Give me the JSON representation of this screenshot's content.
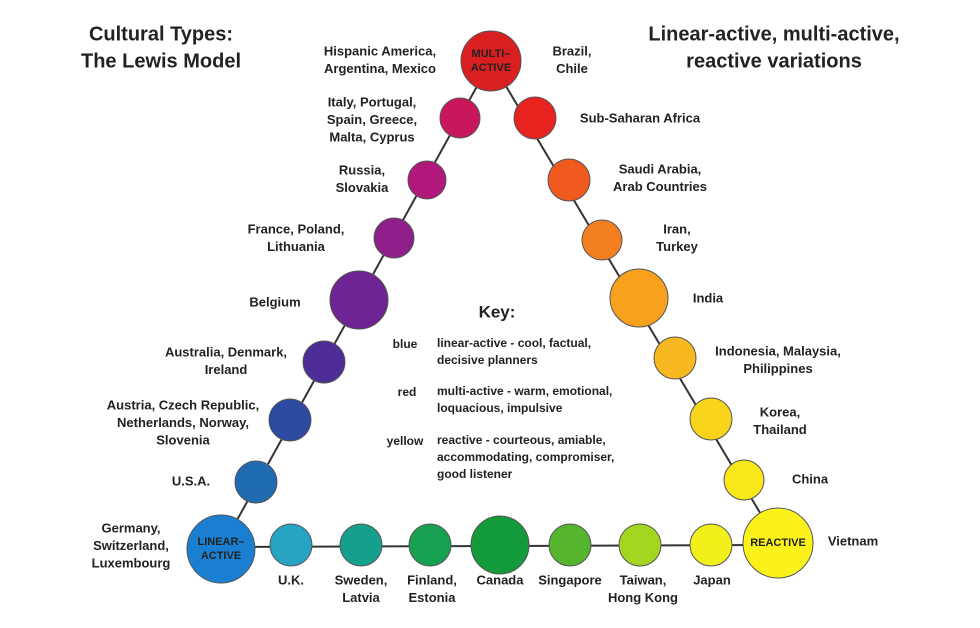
{
  "title": {
    "lines": [
      "Cultural Types:",
      "The Lewis Model"
    ]
  },
  "subtitle": {
    "lines": [
      "Linear-active, multi-active,",
      "reactive variations"
    ]
  },
  "poles": [
    {
      "lines": [
        "MULTI–",
        "ACTIVE"
      ]
    },
    {
      "lines": [
        "LINEAR–",
        "ACTIVE"
      ]
    },
    {
      "lines": [
        "REACTIVE"
      ]
    }
  ],
  "countries": [
    {
      "lines": [
        "Hispanic America,",
        "Argentina, Mexico"
      ]
    },
    {
      "lines": [
        "Brazil,",
        "Chile"
      ]
    },
    {
      "lines": [
        "Italy, Portugal,",
        "Spain, Greece,",
        "Malta, Cyprus"
      ]
    },
    {
      "lines": [
        "Russia,",
        "Slovakia"
      ]
    },
    {
      "lines": [
        "France, Poland,",
        "Lithuania"
      ]
    },
    {
      "lines": [
        "Belgium"
      ]
    },
    {
      "lines": [
        "Australia, Denmark,",
        "Ireland"
      ]
    },
    {
      "lines": [
        "Austria, Czech Republic,",
        "Netherlands, Norway,",
        "Slovenia"
      ]
    },
    {
      "lines": [
        "U.S.A."
      ]
    },
    {
      "lines": [
        "Germany,",
        "Switzerland,",
        "Luxembourg"
      ]
    },
    {
      "lines": [
        "U.K."
      ]
    },
    {
      "lines": [
        "Sweden,",
        "Latvia"
      ]
    },
    {
      "lines": [
        "Finland,",
        "Estonia"
      ]
    },
    {
      "lines": [
        "Canada"
      ]
    },
    {
      "lines": [
        "Singapore"
      ]
    },
    {
      "lines": [
        "Taiwan,",
        "Hong Kong"
      ]
    },
    {
      "lines": [
        "Japan"
      ]
    },
    {
      "lines": [
        "Vietnam"
      ]
    },
    {
      "lines": [
        "China"
      ]
    },
    {
      "lines": [
        "Korea,",
        "Thailand"
      ]
    },
    {
      "lines": [
        "Indonesia, Malaysia,",
        "Philippines"
      ]
    },
    {
      "lines": [
        "India"
      ]
    },
    {
      "lines": [
        "Iran,",
        "Turkey"
      ]
    },
    {
      "lines": [
        "Saudi Arabia,",
        "Arab Countries"
      ]
    },
    {
      "lines": [
        "Sub-Saharan Africa"
      ]
    }
  ],
  "key": {
    "title": "Key:",
    "items": [
      {
        "color": "blue",
        "lines": [
          "linear-active - cool, factual,",
          "decisive planners"
        ]
      },
      {
        "color": "red",
        "lines": [
          "multi-active - warm, emotional,",
          "loquacious, impulsive"
        ]
      },
      {
        "color": "yellow",
        "lines": [
          "reactive - courteous, amiable,",
          "accommodating, compromiser,",
          "good listener"
        ]
      }
    ]
  }
}
